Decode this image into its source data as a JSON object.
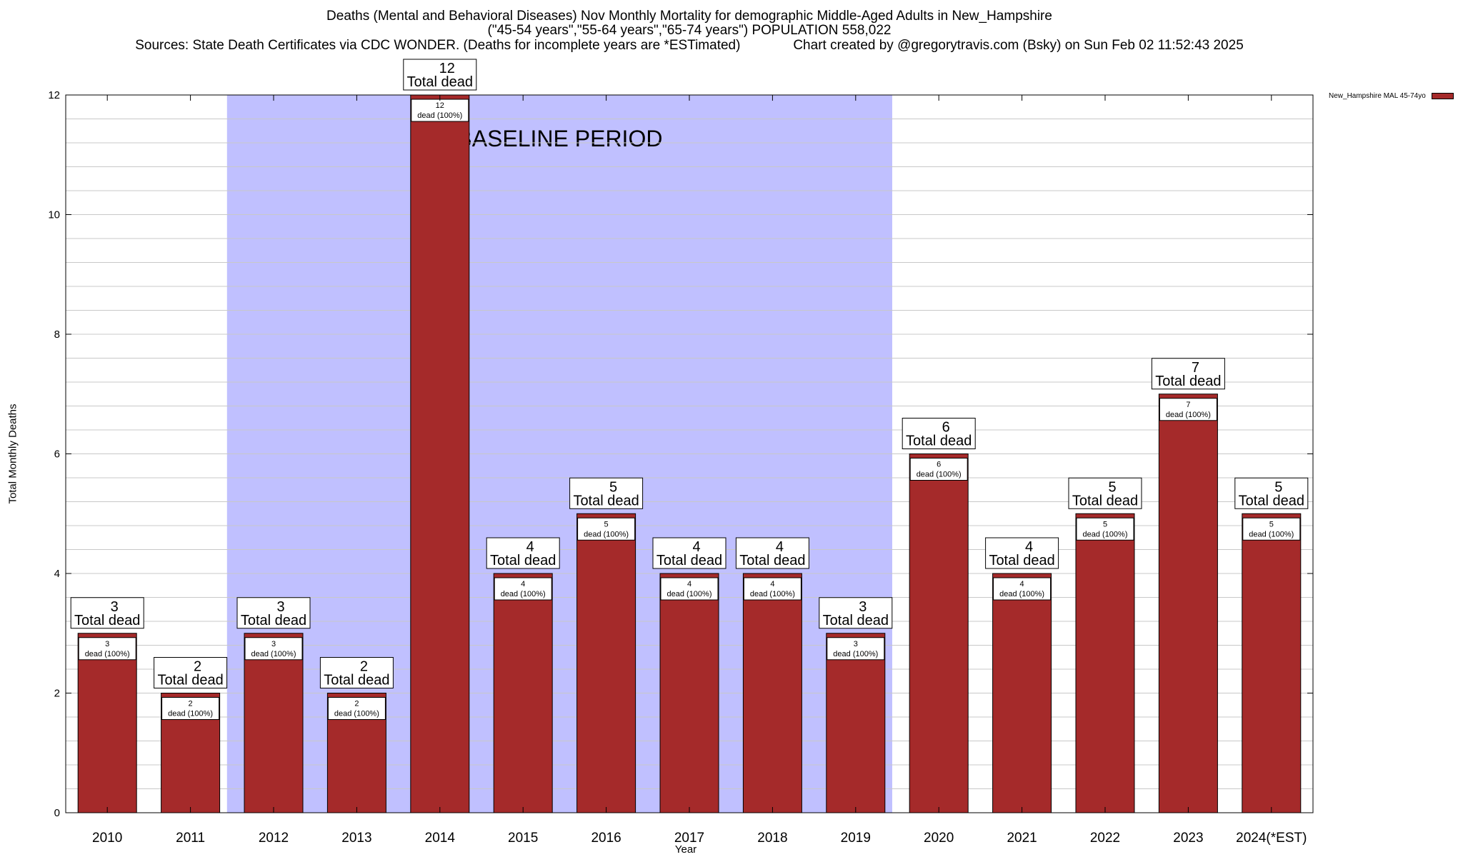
{
  "title": {
    "line1": "Deaths (Mental and Behavioral Diseases) Nov Monthly Mortality for demographic Middle-Aged Adults in New_Hampshire",
    "line2": "(\"45-54 years\",\"55-64 years\",\"65-74 years\") POPULATION 558,022",
    "line3": "Sources: State Death Certificates via CDC WONDER. (Deaths for incomplete years are *ESTimated)              Chart created by @gregorytravis.com (Bsky) on Sun Feb 02 11:52:43 2025"
  },
  "colors": {
    "bar": "#a52a2a",
    "baseline_band": "#c0c0ff",
    "grid": "#c8c8c8"
  },
  "chart_data": {
    "type": "bar",
    "xlabel": "Year",
    "ylabel": "Total Monthly Deaths",
    "ylim": [
      0,
      12
    ],
    "yticks": [
      0,
      2,
      4,
      6,
      8,
      10,
      12
    ],
    "grid": true,
    "legend_position": "top-right",
    "categories": [
      "2010",
      "2011",
      "2012",
      "2013",
      "2014",
      "2015",
      "2016",
      "2017",
      "2018",
      "2019",
      "2020",
      "2021",
      "2022",
      "2023",
      "2024(*EST)"
    ],
    "series": [
      {
        "name": "New_Hampshire MAL 45-74yo",
        "values": [
          3,
          2,
          3,
          2,
          12,
          4,
          5,
          4,
          4,
          3,
          6,
          4,
          5,
          7,
          5
        ]
      }
    ],
    "top_label_text": "Total dead",
    "inner_label_text": "dead (100%)",
    "baseline_band": {
      "label": "BASELINE PERIOD",
      "from": "2012",
      "to": "2019"
    }
  }
}
